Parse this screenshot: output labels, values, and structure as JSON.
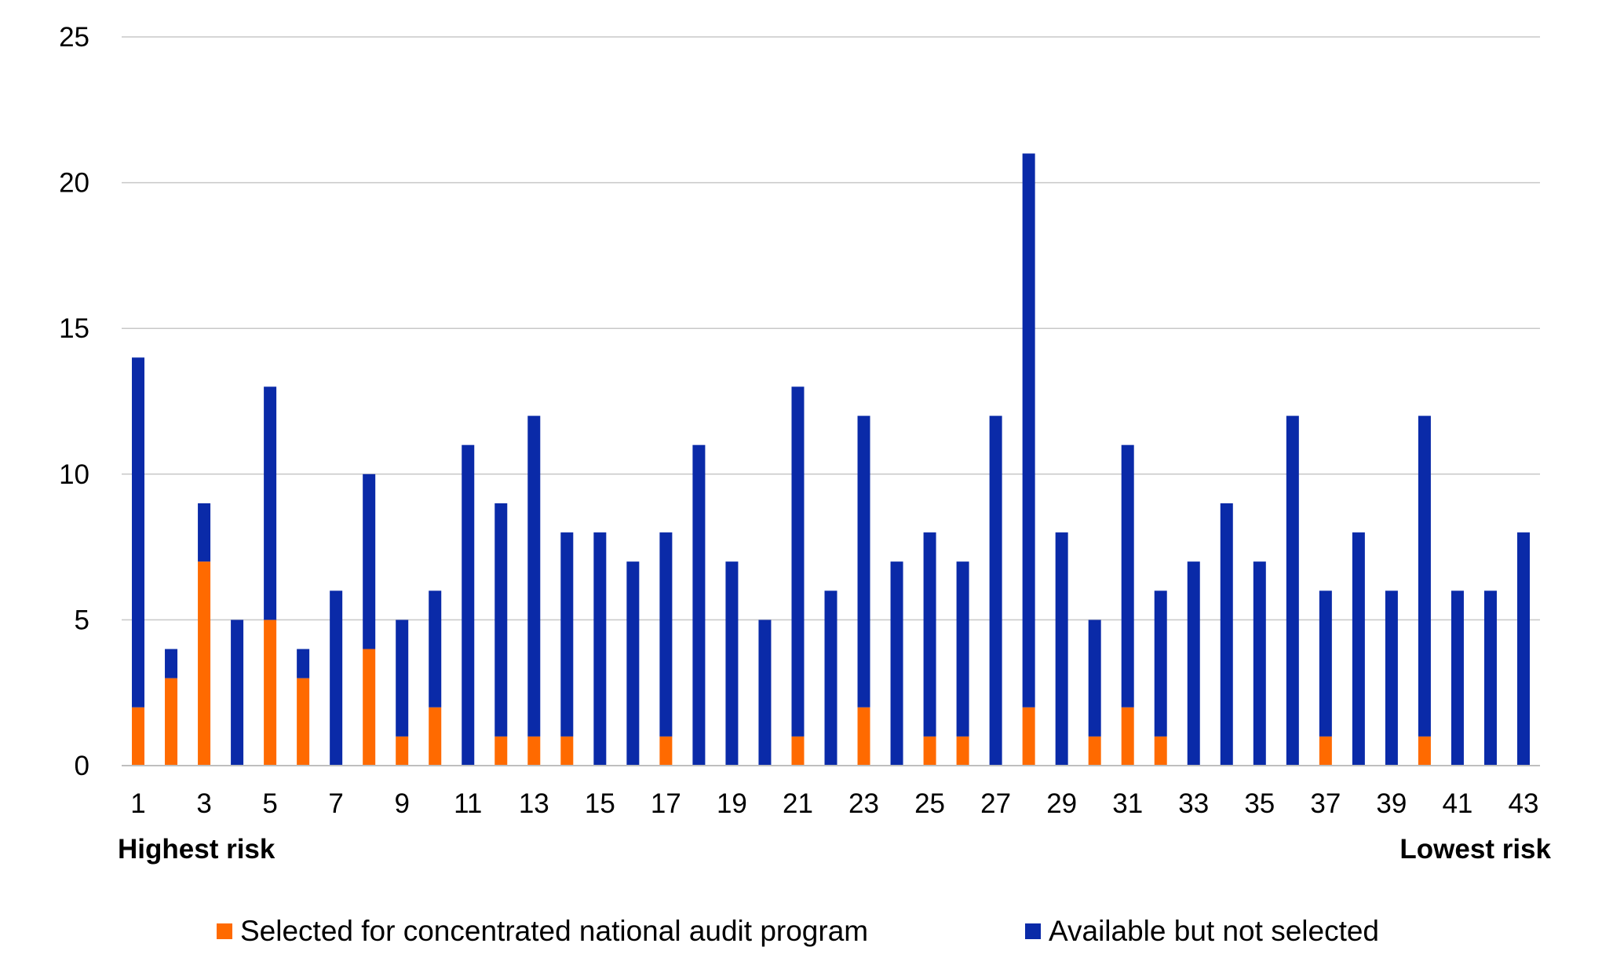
{
  "chart_data": {
    "type": "bar",
    "stacked": true,
    "categories": [
      "1",
      "2",
      "3",
      "4",
      "5",
      "6",
      "7",
      "8",
      "9",
      "10",
      "11",
      "12",
      "13",
      "14",
      "15",
      "16",
      "17",
      "18",
      "19",
      "20",
      "21",
      "22",
      "23",
      "24",
      "25",
      "26",
      "27",
      "28",
      "29",
      "30",
      "31",
      "32",
      "33",
      "34",
      "35",
      "36",
      "37",
      "38",
      "39",
      "40",
      "41",
      "42",
      "43"
    ],
    "x_tick_labels": [
      "1",
      "3",
      "5",
      "7",
      "9",
      "11",
      "13",
      "15",
      "17",
      "19",
      "21",
      "23",
      "25",
      "27",
      "29",
      "31",
      "33",
      "35",
      "37",
      "39",
      "41",
      "43"
    ],
    "series": [
      {
        "name": "Selected for concentrated national audit program",
        "color": "#ff6a00",
        "values": [
          2,
          3,
          7,
          0,
          5,
          3,
          0,
          4,
          1,
          2,
          0,
          1,
          1,
          1,
          0,
          0,
          1,
          0,
          0,
          0,
          1,
          0,
          2,
          0,
          1,
          1,
          0,
          2,
          0,
          1,
          2,
          1,
          0,
          0,
          0,
          0,
          1,
          0,
          0,
          1,
          0,
          0,
          0
        ]
      },
      {
        "name": "Available but not selected",
        "color": "#0a2aa8",
        "values": [
          12,
          1,
          2,
          5,
          8,
          1,
          6,
          6,
          4,
          4,
          11,
          8,
          11,
          7,
          8,
          7,
          7,
          11,
          7,
          5,
          12,
          6,
          10,
          7,
          7,
          6,
          12,
          19,
          8,
          4,
          9,
          5,
          7,
          9,
          7,
          12,
          5,
          8,
          6,
          11,
          6,
          6,
          8
        ]
      }
    ],
    "ylim": [
      0,
      25
    ],
    "yticks": [
      0,
      5,
      10,
      15,
      20,
      25
    ],
    "grid": true,
    "legend_position": "bottom",
    "annotations": {
      "left": "Highest risk",
      "right": "Lowest risk"
    },
    "title": "",
    "xlabel": "",
    "ylabel": ""
  }
}
